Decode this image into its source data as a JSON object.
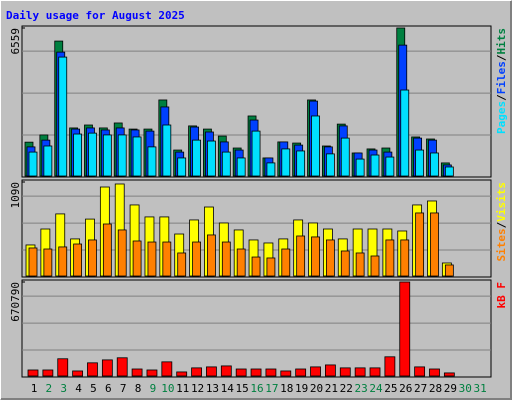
{
  "title": "Daily usage for August 2025",
  "legend_separator": "/",
  "days": [
    "1",
    "2",
    "3",
    "4",
    "5",
    "6",
    "7",
    "8",
    "9",
    "10",
    "11",
    "12",
    "13",
    "14",
    "15",
    "16",
    "17",
    "18",
    "19",
    "20",
    "21",
    "22",
    "23",
    "24",
    "25",
    "26",
    "27",
    "28",
    "29",
    "30",
    "31"
  ],
  "day_colors": [
    "#000000",
    "#008040",
    "#008040",
    "#000000",
    "#000000",
    "#000000",
    "#000000",
    "#000000",
    "#008040",
    "#008040",
    "#000000",
    "#000000",
    "#000000",
    "#000000",
    "#000000",
    "#008040",
    "#008040",
    "#000000",
    "#000000",
    "#000000",
    "#000000",
    "#000000",
    "#008040",
    "#008040",
    "#000000",
    "#000000",
    "#000000",
    "#000000",
    "#000000",
    "#008040",
    "#008040"
  ],
  "chart_data": [
    {
      "type": "bar",
      "ylim": [
        0,
        6559
      ],
      "yticks": [
        6559
      ],
      "series": [
        {
          "name": "Hits",
          "color": "#008040",
          "values": [
            1500,
            1820,
            5980,
            2130,
            2260,
            2130,
            2350,
            2080,
            2080,
            3370,
            1150,
            2220,
            2080,
            1770,
            1240,
            2660,
            800,
            1510,
            1460,
            3370,
            1330,
            2300,
            1020,
            1200,
            1240,
            6559,
            1730,
            1640,
            580,
            0,
            0
          ]
        },
        {
          "name": "Files",
          "color": "#0040ff",
          "values": [
            1290,
            1590,
            5490,
            2080,
            2130,
            2040,
            2130,
            2040,
            1990,
            3060,
            1060,
            2170,
            1950,
            1510,
            1150,
            2480,
            800,
            1510,
            1370,
            3320,
            1290,
            2220,
            1020,
            1150,
            1060,
            5800,
            1680,
            1590,
            490,
            0,
            0
          ]
        },
        {
          "name": "Pages",
          "color": "#00e0ff",
          "values": [
            1060,
            1330,
            5270,
            1860,
            1900,
            1820,
            1820,
            1730,
            1290,
            2260,
            800,
            1590,
            1550,
            1060,
            800,
            1990,
            580,
            1200,
            1110,
            2660,
            980,
            1680,
            750,
            930,
            840,
            3810,
            1150,
            1020,
            400,
            0,
            0
          ]
        }
      ]
    },
    {
      "type": "bar",
      "ylim": [
        0,
        1090
      ],
      "yticks": [
        1090
      ],
      "series": [
        {
          "name": "Visits",
          "color": "#ffff00",
          "values": [
            360,
            545,
            720,
            430,
            660,
            1032,
            1067,
            824,
            685,
            685,
            487,
            650,
            800,
            615,
            534,
            418,
            383,
            430,
            650,
            615,
            545,
            430,
            545,
            545,
            545,
            522,
            824,
            870,
            151,
            0,
            0
          ]
        },
        {
          "name": "Sites",
          "color": "#ff8000",
          "values": [
            325,
            313,
            337,
            371,
            418,
            603,
            534,
            406,
            394,
            394,
            267,
            394,
            476,
            394,
            313,
            220,
            209,
            313,
            464,
            453,
            418,
            290,
            267,
            232,
            418,
            418,
            731,
            731,
            128,
            0,
            0
          ]
        }
      ]
    },
    {
      "type": "bar",
      "ylim": [
        0,
        670790
      ],
      "yticks": [
        670790
      ],
      "series": [
        {
          "name": "kB F",
          "color": "#ff0000",
          "values": [
            43000,
            43000,
            123000,
            36000,
            94000,
            115000,
            130000,
            50000,
            43000,
            101000,
            29000,
            58000,
            65000,
            72000,
            50000,
            50000,
            50000,
            36000,
            50000,
            65000,
            79000,
            58000,
            58000,
            58000,
            137000,
            670790,
            65000,
            50000,
            22000,
            0,
            0
          ]
        }
      ]
    }
  ]
}
